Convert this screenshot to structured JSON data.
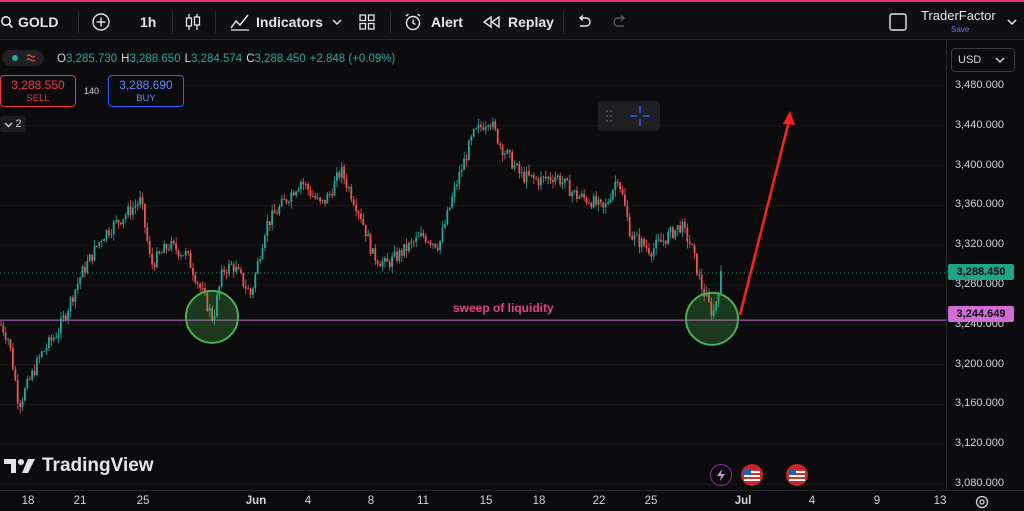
{
  "toolbar": {
    "symbol": "GOLD",
    "interval": "1h",
    "indicators": "Indicators",
    "alert": "Alert",
    "replay": "Replay",
    "user": "TraderFactor",
    "save": "Save"
  },
  "legend": {
    "o_label": "O",
    "o_value": "3,285.730",
    "h_label": "H",
    "h_value": "3,288.650",
    "l_label": "L",
    "l_value": "3,284.574",
    "c_label": "C",
    "c_value": "3,288.450",
    "change": "+2.848 (+0.09%)"
  },
  "trade": {
    "sell_price": "3,288.550",
    "sell_label": "SELL",
    "spread": "140",
    "buy_price": "3,288.690",
    "buy_label": "BUY"
  },
  "collapse_count": "2",
  "currency": "USD",
  "price_axis": [
    "3,480.000",
    "3,440.000",
    "3,400.000",
    "3,360.000",
    "3,320.000",
    "3,280.000",
    "3,240.000",
    "3,200.000",
    "3,160.000",
    "3,120.000",
    "3,080.000"
  ],
  "last_price": "3,288.450",
  "line_price": "3,244.649",
  "time_axis": [
    {
      "label": "18",
      "bold": false
    },
    {
      "label": "21",
      "bold": false
    },
    {
      "label": "25",
      "bold": false
    },
    {
      "label": "Jun",
      "bold": true
    },
    {
      "label": "4",
      "bold": false
    },
    {
      "label": "8",
      "bold": false
    },
    {
      "label": "11",
      "bold": false
    },
    {
      "label": "15",
      "bold": false
    },
    {
      "label": "18",
      "bold": false
    },
    {
      "label": "22",
      "bold": false
    },
    {
      "label": "25",
      "bold": false
    },
    {
      "label": "Jul",
      "bold": true
    },
    {
      "label": "4",
      "bold": false
    },
    {
      "label": "9",
      "bold": false
    },
    {
      "label": "13",
      "bold": false
    }
  ],
  "annotation": "sweep of liquidity",
  "brand": "TradingView",
  "colors": {
    "up": "#26a69a",
    "down": "#ef5350",
    "line": "#d46cd8",
    "circle": "#4caf50",
    "arrow": "#ff1f1f",
    "annotation": "#e0447e"
  },
  "chart_data": {
    "type": "candlestick",
    "symbol": "GOLD",
    "interval": "1h",
    "ylim": [
      3080,
      3490
    ],
    "price_scale": "linear",
    "path": [
      {
        "x": "May 16",
        "y": 3240
      },
      {
        "x": "May 17",
        "y": 3225
      },
      {
        "x": "May 18",
        "y": 3160
      },
      {
        "x": "May 19",
        "y": 3210
      },
      {
        "x": "May 20",
        "y": 3235
      },
      {
        "x": "May 21",
        "y": 3290
      },
      {
        "x": "May 22",
        "y": 3330
      },
      {
        "x": "May 23",
        "y": 3345
      },
      {
        "x": "May 25",
        "y": 3300
      },
      {
        "x": "May 26",
        "y": 3365
      },
      {
        "x": "May 27",
        "y": 3320
      },
      {
        "x": "May 28",
        "y": 3310
      },
      {
        "x": "May 29",
        "y": 3285
      },
      {
        "x": "May 30",
        "y": 3295
      },
      {
        "x": "May 31",
        "y": 3246
      },
      {
        "x": "Jun 1",
        "y": 3300
      },
      {
        "x": "Jun 2",
        "y": 3270
      },
      {
        "x": "Jun 3",
        "y": 3340
      },
      {
        "x": "Jun 4",
        "y": 3385
      },
      {
        "x": "Jun 5",
        "y": 3360
      },
      {
        "x": "Jun 6",
        "y": 3370
      },
      {
        "x": "Jun 7",
        "y": 3395
      },
      {
        "x": "Jun 8",
        "y": 3350
      },
      {
        "x": "Jun 9",
        "y": 3310
      },
      {
        "x": "Jun 10",
        "y": 3300
      },
      {
        "x": "Jun 11",
        "y": 3330
      },
      {
        "x": "Jun 12",
        "y": 3320
      },
      {
        "x": "Jun 13",
        "y": 3380
      },
      {
        "x": "Jun 14",
        "y": 3430
      },
      {
        "x": "Jun 15",
        "y": 3448
      },
      {
        "x": "Jun 16",
        "y": 3420
      },
      {
        "x": "Jun 17",
        "y": 3390
      },
      {
        "x": "Jun 18",
        "y": 3385
      },
      {
        "x": "Jun 19",
        "y": 3390
      },
      {
        "x": "Jun 20",
        "y": 3370
      },
      {
        "x": "Jun 21",
        "y": 3365
      },
      {
        "x": "Jun 22",
        "y": 3355
      },
      {
        "x": "Jun 23",
        "y": 3390
      },
      {
        "x": "Jun 24",
        "y": 3330
      },
      {
        "x": "Jun 25",
        "y": 3315
      },
      {
        "x": "Jun 26",
        "y": 3330
      },
      {
        "x": "Jun 27",
        "y": 3340
      },
      {
        "x": "Jun 28",
        "y": 3320
      },
      {
        "x": "Jun 29",
        "y": 3280
      },
      {
        "x": "Jun 30",
        "y": 3250
      },
      {
        "x": "Jul 1",
        "y": 3288.45
      }
    ],
    "horizontal_line": 3244.649,
    "circles": [
      {
        "x": "May 31",
        "y": 3248
      },
      {
        "x": "Jun 30",
        "y": 3246
      }
    ],
    "arrow": {
      "from": {
        "x": "Jul 1",
        "y": 3250
      },
      "to": {
        "x": "Jul 3",
        "y": 3455
      }
    },
    "annotation": "sweep of liquidity"
  }
}
